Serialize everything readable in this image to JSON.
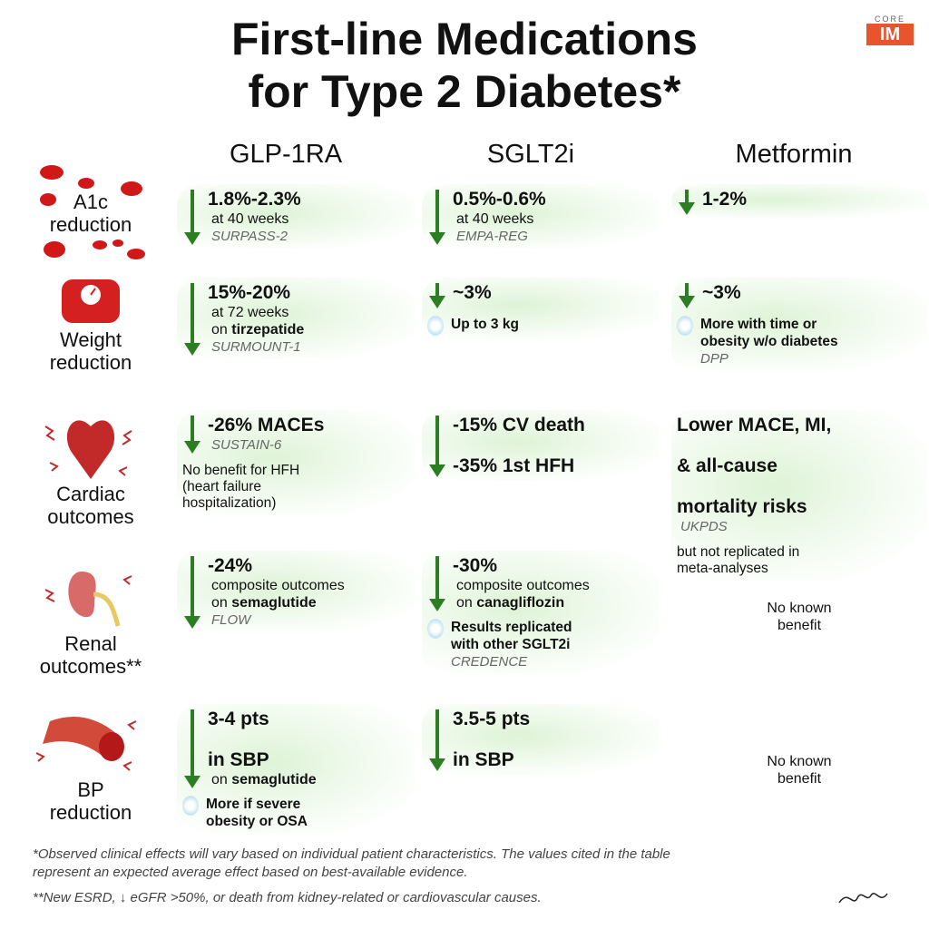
{
  "header": {
    "title": [
      "First-line Medications",
      "for Type 2 Diabetes*"
    ],
    "logo": [
      "CORE",
      "IM"
    ]
  },
  "table": {
    "columns": [
      "GLP-1RA",
      "SGLT2i",
      "Metformin"
    ],
    "rows": [
      {
        "label": [
          "A1c",
          "reduction"
        ],
        "cells": [
          {
            "arrow": true,
            "main": [
              "1.8%-2.3%"
            ],
            "sub": [
              "at 40 weeks"
            ],
            "trial": "SURPASS-2"
          },
          {
            "arrow": true,
            "main": [
              "0.5%-0.6%"
            ],
            "sub": [
              "at 40 weeks"
            ],
            "trial": "EMPA-REG"
          },
          {
            "arrow": true,
            "main": [
              "1-2%"
            ]
          }
        ]
      },
      {
        "label": [
          "Weight",
          "reduction"
        ],
        "cells": [
          {
            "arrow": true,
            "main": [
              "15%-20%"
            ],
            "sub": [
              "at 72 weeks"
            ],
            "drug": {
              "prefix": "on",
              "name": "tirzepatide"
            },
            "trial": "SURMOUNT-1"
          },
          {
            "arrow": true,
            "main": [
              "~3%"
            ],
            "note": [
              "Up to 3 kg"
            ]
          },
          {
            "arrow": true,
            "main": [
              "~3%"
            ],
            "note": [
              "More with time or",
              "obesity w/o diabetes"
            ],
            "trial": "DPP"
          }
        ]
      },
      {
        "label": [
          "Cardiac",
          "outcomes"
        ],
        "cells": [
          {
            "arrow": true,
            "main": [
              "-26% MACEs"
            ],
            "trial": "SUSTAIN-6",
            "after": [
              "No benefit for HFH",
              "(heart failure",
              "hospitalization)"
            ]
          },
          {
            "arrow": true,
            "main": [
              "-15% CV death",
              "-35% 1st HFH"
            ]
          },
          {
            "arrow": false,
            "main": [
              "Lower MACE, MI,",
              "& all-cause",
              "mortality risks"
            ],
            "trial": "UKPDS",
            "after": [
              "but not replicated in",
              "meta-analyses"
            ]
          }
        ]
      },
      {
        "label": [
          "Renal",
          "outcomes**"
        ],
        "cells": [
          {
            "arrow": true,
            "main": [
              "-24%"
            ],
            "sub": [
              "composite outcomes"
            ],
            "drug": {
              "prefix": "on",
              "name": "semaglutide"
            },
            "trial": "FLOW"
          },
          {
            "arrow": true,
            "main": [
              "-30%"
            ],
            "sub": [
              "composite outcomes"
            ],
            "drug": {
              "prefix": "on",
              "name": "canagliflozin"
            },
            "trial": "CREDENCE",
            "note": [
              "Results replicated",
              "with other SGLT2i"
            ]
          },
          {
            "arrow": false,
            "plain": [
              "No known",
              "benefit"
            ]
          }
        ]
      },
      {
        "label": [
          "BP",
          "reduction"
        ],
        "cells": [
          {
            "arrow": true,
            "main": [
              "3-4 pts",
              "in SBP"
            ],
            "drug": {
              "prefix": "on",
              "name": "semaglutide"
            },
            "note": [
              "More if severe",
              "obesity or OSA"
            ]
          },
          {
            "arrow": true,
            "main": [
              "3.5-5 pts",
              "in SBP"
            ]
          },
          {
            "arrow": false,
            "plain": [
              "No known",
              "benefit"
            ]
          }
        ]
      }
    ]
  },
  "footnotes": [
    "*Observed clinical effects will vary based on individual patient characteristics. The values cited in the table",
    "represent an expected average effect based on best-available evidence.",
    "**New ESRD, ↓ eGFR >50%, or death from kidney-related or cardiovascular causes."
  ]
}
